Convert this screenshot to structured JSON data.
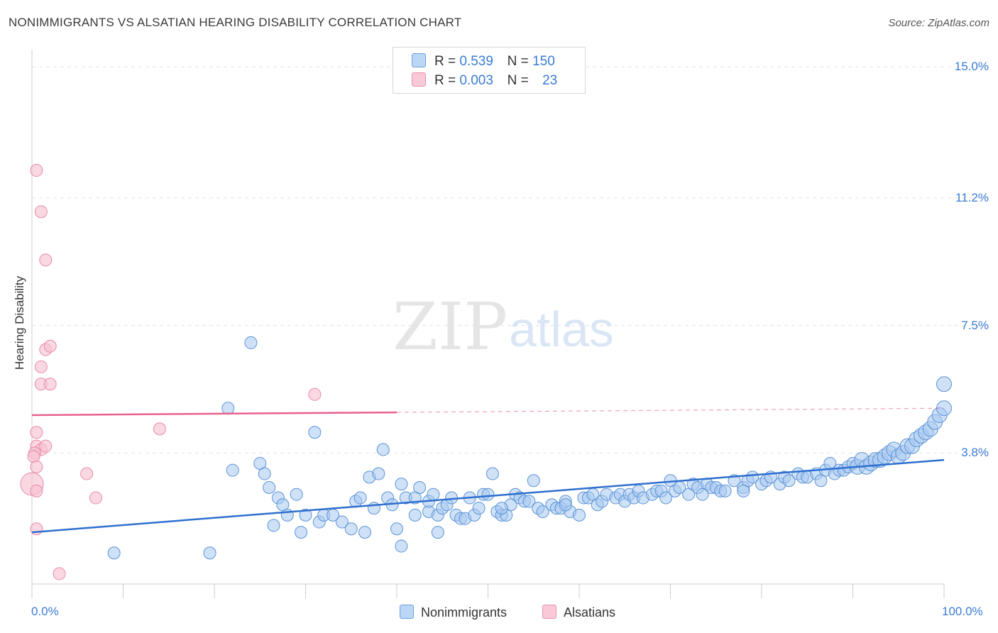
{
  "header": {
    "title": "NONIMMIGRANTS VS ALSATIAN HEARING DISABILITY CORRELATION CHART",
    "source": "Source: ZipAtlas.com"
  },
  "watermark": {
    "zip": "ZIP",
    "atlas": "atlas"
  },
  "legend": {
    "items": [
      {
        "r_label": "R =",
        "r_value": "0.539",
        "n_label": "N =",
        "n_value": "150",
        "color": "#a8c8f0"
      },
      {
        "r_label": "R =",
        "r_value": "0.003",
        "n_label": "N =",
        "n_value": "23",
        "color": "#f7b8cc"
      }
    ]
  },
  "bottom_legend": {
    "series1": "Nonimmigrants",
    "series2": "Alsatians"
  },
  "colors": {
    "blue_fill": "#a8c8f0",
    "blue_stroke": "#5b93d6",
    "blue_line": "#2f6fcf",
    "pink_fill": "#f7c3d3",
    "pink_stroke": "#e98aa8",
    "pink_line": "#e8628c",
    "tick_text": "#3a7bd5"
  },
  "chart_data": {
    "type": "scatter",
    "title": "NONIMMIGRANTS VS ALSATIAN HEARING DISABILITY CORRELATION CHART",
    "xlabel": "",
    "ylabel": "Hearing Disability",
    "xlim": [
      0,
      100
    ],
    "ylim": [
      0,
      15.5
    ],
    "x_tick_labels": [
      "0.0%",
      "100.0%"
    ],
    "y_ticks": [
      3.8,
      7.5,
      11.2,
      15.0
    ],
    "y_tick_labels": [
      "3.8%",
      "7.5%",
      "11.2%",
      "15.0%"
    ],
    "grid": true,
    "series": [
      {
        "name": "Nonimmigrants",
        "r": 0.539,
        "n": 150,
        "trend": {
          "x": [
            0,
            100
          ],
          "y": [
            1.5,
            3.6
          ]
        },
        "points": [
          [
            9,
            0.9
          ],
          [
            19.5,
            0.9
          ],
          [
            21.5,
            5.1
          ],
          [
            22,
            3.3
          ],
          [
            24,
            7
          ],
          [
            25,
            3.5
          ],
          [
            25.5,
            3.2
          ],
          [
            26,
            2.8
          ],
          [
            26.5,
            1.7
          ],
          [
            27,
            2.5
          ],
          [
            27.5,
            2.3
          ],
          [
            28,
            2
          ],
          [
            29,
            2.6
          ],
          [
            29.5,
            1.5
          ],
          [
            30,
            2
          ],
          [
            31,
            4.4
          ],
          [
            31.5,
            1.8
          ],
          [
            32,
            2
          ],
          [
            33,
            2
          ],
          [
            34,
            1.8
          ],
          [
            35,
            1.6
          ],
          [
            35.5,
            2.4
          ],
          [
            36,
            2.5
          ],
          [
            36.5,
            1.5
          ],
          [
            37,
            3.1
          ],
          [
            37.5,
            2.2
          ],
          [
            38,
            3.2
          ],
          [
            38.5,
            3.9
          ],
          [
            39,
            2.5
          ],
          [
            39.5,
            2.3
          ],
          [
            40,
            1.6
          ],
          [
            40.5,
            1.1
          ],
          [
            40.5,
            2.9
          ],
          [
            41,
            2.5
          ],
          [
            42,
            2.5
          ],
          [
            42,
            2
          ],
          [
            42.5,
            2.8
          ],
          [
            43.5,
            2.1
          ],
          [
            43.5,
            2.4
          ],
          [
            44,
            2.6
          ],
          [
            44.5,
            2
          ],
          [
            44.5,
            1.5
          ],
          [
            45,
            2.2
          ],
          [
            45.5,
            2.3
          ],
          [
            46,
            2.5
          ],
          [
            46.5,
            2
          ],
          [
            47,
            1.9
          ],
          [
            47.5,
            1.9
          ],
          [
            48,
            2.5
          ],
          [
            48.5,
            2
          ],
          [
            49,
            2.2
          ],
          [
            49.5,
            2.6
          ],
          [
            50,
            2.6
          ],
          [
            50.5,
            3.2
          ],
          [
            51,
            2.1
          ],
          [
            51.5,
            2
          ],
          [
            52,
            2
          ],
          [
            52.5,
            2.3
          ],
          [
            53,
            2.6
          ],
          [
            53.5,
            2.5
          ],
          [
            54,
            2.4
          ],
          [
            54.5,
            2.4
          ],
          [
            55,
            3
          ],
          [
            55.5,
            2.2
          ],
          [
            56,
            2.1
          ],
          [
            57,
            2.3
          ],
          [
            57.5,
            2.2
          ],
          [
            58,
            2.2
          ],
          [
            58.5,
            2.4
          ],
          [
            59,
            2.1
          ],
          [
            60,
            2
          ],
          [
            60.5,
            2.5
          ],
          [
            61,
            2.5
          ],
          [
            61.5,
            2.6
          ],
          [
            62,
            2.3
          ],
          [
            62.5,
            2.4
          ],
          [
            63,
            2.6
          ],
          [
            64,
            2.5
          ],
          [
            64.5,
            2.6
          ],
          [
            65,
            2.4
          ],
          [
            65.5,
            2.6
          ],
          [
            66,
            2.5
          ],
          [
            66.5,
            2.7
          ],
          [
            67,
            2.5
          ],
          [
            68,
            2.6
          ],
          [
            68.5,
            2.7
          ],
          [
            69,
            2.7
          ],
          [
            69.5,
            2.5
          ],
          [
            70,
            3
          ],
          [
            70.5,
            2.7
          ],
          [
            71,
            2.8
          ],
          [
            72,
            2.6
          ],
          [
            72.5,
            2.9
          ],
          [
            73,
            2.8
          ],
          [
            74,
            2.9
          ],
          [
            74.5,
            2.8
          ],
          [
            75,
            2.8
          ],
          [
            75.5,
            2.7
          ],
          [
            76,
            2.7
          ],
          [
            77,
            3
          ],
          [
            78,
            2.8
          ],
          [
            78.5,
            3
          ],
          [
            79,
            3.1
          ],
          [
            80,
            2.9
          ],
          [
            80.5,
            3
          ],
          [
            81,
            3.1
          ],
          [
            82,
            2.9
          ],
          [
            82.5,
            3.1
          ],
          [
            83,
            3
          ],
          [
            84,
            3.2
          ],
          [
            84.5,
            3.1
          ],
          [
            85,
            3.1
          ],
          [
            86,
            3.2
          ],
          [
            86.5,
            3
          ],
          [
            87,
            3.3
          ],
          [
            87.5,
            3.5
          ],
          [
            88,
            3.2
          ],
          [
            88.5,
            3.3
          ],
          [
            89,
            3.3
          ],
          [
            89.5,
            3.4
          ],
          [
            90,
            3.5
          ],
          [
            90.5,
            3.4
          ],
          [
            91,
            3.6
          ],
          [
            91.5,
            3.4
          ],
          [
            92,
            3.5
          ],
          [
            92.5,
            3.6
          ],
          [
            93,
            3.6
          ],
          [
            93.5,
            3.7
          ],
          [
            94,
            3.8
          ],
          [
            94.5,
            3.9
          ],
          [
            95,
            3.7
          ],
          [
            95.5,
            3.8
          ],
          [
            96,
            4
          ],
          [
            96.5,
            4
          ],
          [
            97,
            4.2
          ],
          [
            97.5,
            4.3
          ],
          [
            98,
            4.4
          ],
          [
            98.5,
            4.5
          ],
          [
            99,
            4.7
          ],
          [
            99.5,
            4.9
          ],
          [
            100,
            5.1
          ],
          [
            100,
            5.8
          ],
          [
            78,
            2.7
          ],
          [
            73.5,
            2.6
          ],
          [
            58.5,
            2.3
          ],
          [
            51.5,
            2.2
          ]
        ]
      },
      {
        "name": "Alsatians",
        "r": 0.003,
        "n": 23,
        "trend": {
          "x": [
            0,
            100
          ],
          "y": [
            4.9,
            5.1
          ]
        },
        "points": [
          [
            0.5,
            12
          ],
          [
            1,
            10.8
          ],
          [
            1.5,
            9.4
          ],
          [
            1.5,
            6.8
          ],
          [
            2,
            6.9
          ],
          [
            1,
            6.3
          ],
          [
            1,
            5.8
          ],
          [
            2,
            5.8
          ],
          [
            31,
            5.5
          ],
          [
            0.5,
            4.4
          ],
          [
            14,
            4.5
          ],
          [
            0.5,
            4.0
          ],
          [
            1,
            3.9
          ],
          [
            1.5,
            4.0
          ],
          [
            0.3,
            3.8
          ],
          [
            0.2,
            3.7
          ],
          [
            0.5,
            3.4
          ],
          [
            0,
            2.9
          ],
          [
            0.5,
            2.7
          ],
          [
            6,
            3.2
          ],
          [
            7,
            2.5
          ],
          [
            0.5,
            1.6
          ],
          [
            3,
            0.3
          ]
        ]
      }
    ]
  }
}
